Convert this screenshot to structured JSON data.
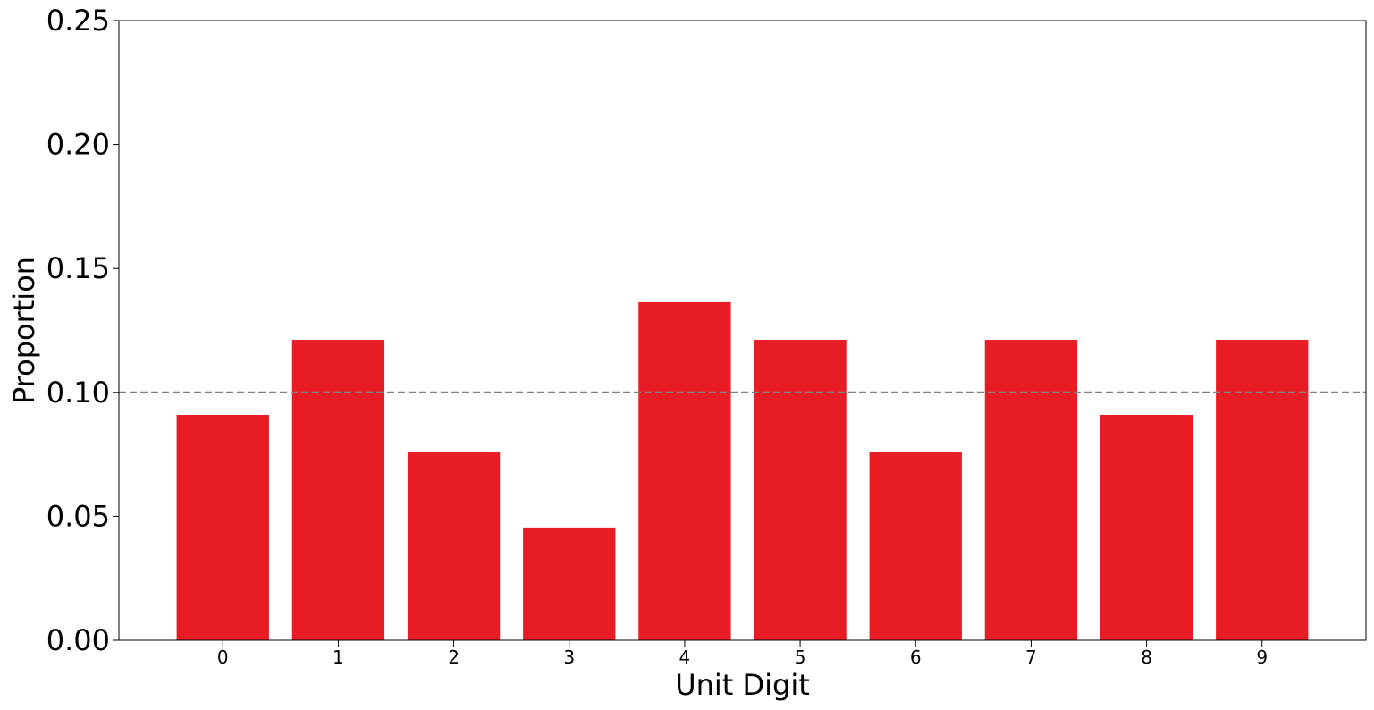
{
  "chart_data": {
    "type": "bar",
    "categories": [
      "0",
      "1",
      "2",
      "3",
      "4",
      "5",
      "6",
      "7",
      "8",
      "9"
    ],
    "values": [
      0.0909,
      0.1212,
      0.0758,
      0.0455,
      0.1364,
      0.1212,
      0.0758,
      0.1212,
      0.0909,
      0.1212
    ],
    "xlabel": "Unit Digit",
    "ylabel": "Proportion",
    "ylim": [
      0,
      0.25
    ],
    "yticks": [
      "0.00",
      "0.05",
      "0.10",
      "0.15",
      "0.20",
      "0.25"
    ],
    "reference_line": {
      "y": 0.1,
      "style": "dashed"
    },
    "colors": {
      "bar": "#e81c24",
      "reference_line": "#808080"
    },
    "grid": false,
    "legend": "none"
  }
}
